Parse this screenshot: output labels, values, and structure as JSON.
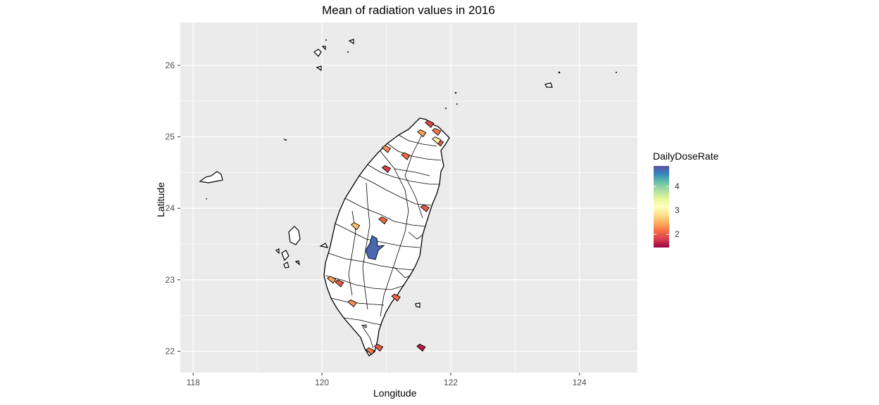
{
  "map": {
    "title": "Mean of radiation values in 2016",
    "xlabel": "Longitude",
    "ylabel": "Latitude",
    "xlim": [
      117.8,
      124.9
    ],
    "ylim": [
      21.7,
      26.6
    ],
    "x_ticks": [
      118,
      120,
      122,
      124
    ],
    "y_ticks": [
      22,
      23,
      24,
      25,
      26
    ],
    "panel_background": "#EBEBEB",
    "grid_color": "#FFFFFF",
    "legend": {
      "title": "DailyDoseRate",
      "breaks": [
        2,
        3,
        4
      ],
      "range": [
        1.45,
        4.85
      ],
      "gradient": [
        "#9E0142",
        "#D53E4F",
        "#F46D43",
        "#FDAE61",
        "#FEE08B",
        "#FFFFBF",
        "#E6F598",
        "#ABDDA4",
        "#66C2A5",
        "#3288BD",
        "#5E4FA2"
      ]
    },
    "highlighted_regions": [
      {
        "lon": 121.67,
        "lat": 25.18,
        "value": 1.9
      },
      {
        "lon": 121.78,
        "lat": 25.07,
        "value": 2.2
      },
      {
        "lon": 121.55,
        "lat": 25.05,
        "value": 2.4
      },
      {
        "lon": 121.82,
        "lat": 24.92,
        "value": 2.0
      },
      {
        "lon": 121.0,
        "lat": 24.83,
        "value": 2.3
      },
      {
        "lon": 121.3,
        "lat": 24.73,
        "value": 2.1
      },
      {
        "lon": 121.78,
        "lat": 24.95,
        "value": 3.0
      },
      {
        "lon": 121.6,
        "lat": 24.0,
        "value": 2.0
      },
      {
        "lon": 120.95,
        "lat": 23.83,
        "value": 2.1
      },
      {
        "lon": 120.52,
        "lat": 23.75,
        "value": 2.6
      },
      {
        "lon": 120.81,
        "lat": 23.45,
        "value": 4.7
      },
      {
        "lon": 120.27,
        "lat": 22.95,
        "value": 2.0
      },
      {
        "lon": 121.15,
        "lat": 22.75,
        "value": 2.1
      },
      {
        "lon": 120.47,
        "lat": 22.67,
        "value": 2.3
      },
      {
        "lon": 120.75,
        "lat": 22.0,
        "value": 2.2
      },
      {
        "lon": 120.88,
        "lat": 22.05,
        "value": 2.0
      },
      {
        "lon": 121.54,
        "lat": 22.05,
        "value": 1.6
      },
      {
        "lon": 120.15,
        "lat": 23.0,
        "value": 2.4
      },
      {
        "lon": 121.0,
        "lat": 24.55,
        "value": 1.8
      }
    ]
  }
}
